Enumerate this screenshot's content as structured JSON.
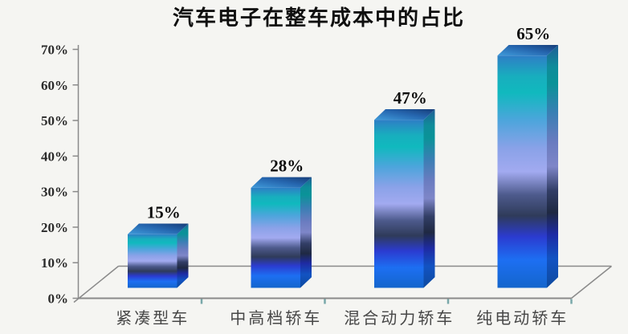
{
  "chart_data": {
    "type": "bar",
    "style": "3d-gradient-bars",
    "title": "汽车电子在整车成本中的占比",
    "categories": [
      "紧凑型车",
      "中高档轿车",
      "混合动力轿车",
      "纯电动轿车"
    ],
    "values": [
      15,
      28,
      47,
      65
    ],
    "value_labels": [
      "15%",
      "28%",
      "47%",
      "65%"
    ],
    "y_ticks": [
      "0%",
      "10%",
      "20%",
      "30%",
      "40%",
      "50%",
      "60%",
      "70%"
    ],
    "ylim": [
      0,
      70
    ],
    "grid": false,
    "legend": "none",
    "colors": {
      "background": "#f5f5f2",
      "axis_line": "#8a8a8a",
      "category_tick": "#79a8aa",
      "title_text": "#0f0f0f",
      "value_text": "#0d0d0d",
      "axis_label_text": "#2b2b2b",
      "category_label_text": "#474747",
      "bar_front_gradient": [
        [
          "0",
          "#2e7ec6"
        ],
        [
          "0.09",
          "#18aebe"
        ],
        [
          "0.16",
          "#10b9be"
        ],
        [
          "0.28",
          "#4da5dc"
        ],
        [
          "0.40",
          "#8aa2e8"
        ],
        [
          "0.50",
          "#a2aaf0"
        ],
        [
          "0.60",
          "#4d5a8c"
        ],
        [
          "0.69",
          "#2f3b5a"
        ],
        [
          "0.78",
          "#2b3bd0"
        ],
        [
          "0.88",
          "#1d6ff2"
        ],
        [
          "1",
          "#1465cc"
        ]
      ],
      "bar_side_gradient": [
        [
          "0",
          "#205e96"
        ],
        [
          "0.09",
          "#0f8c9a"
        ],
        [
          "0.16",
          "#0a9398"
        ],
        [
          "0.28",
          "#3a7fb4"
        ],
        [
          "0.40",
          "#6a7cc0"
        ],
        [
          "0.50",
          "#7e86c8"
        ],
        [
          "0.60",
          "#323e66"
        ],
        [
          "0.69",
          "#1f2942"
        ],
        [
          "0.78",
          "#1e2ba4"
        ],
        [
          "0.88",
          "#1253c2"
        ],
        [
          "1",
          "#0e4a9e"
        ]
      ],
      "bar_top_gradient": [
        [
          "0",
          "#3f9bda"
        ],
        [
          "0.55",
          "#2565ae"
        ],
        [
          "1",
          "#173d78"
        ]
      ]
    }
  }
}
